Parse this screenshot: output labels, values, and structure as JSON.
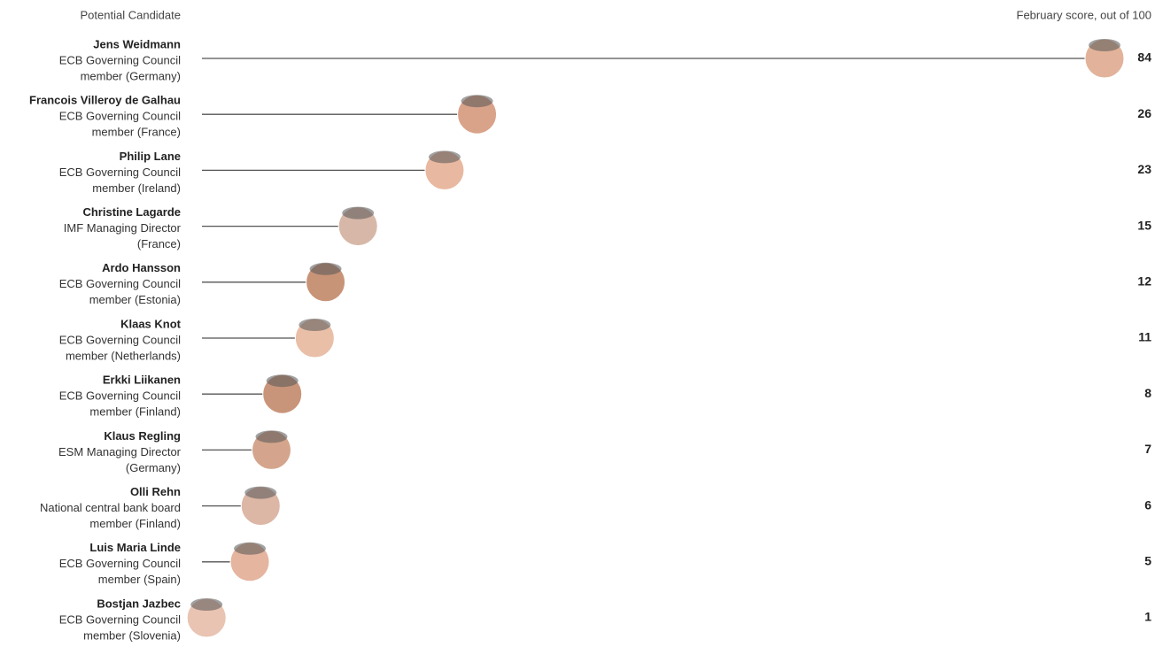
{
  "chart_data": {
    "type": "lollipop",
    "category_header": "Potential Candidate",
    "value_header": "February score, out of 100",
    "categories": [
      "Jens Weidmann",
      "Francois Villeroy de Galhau",
      "Philip Lane",
      "Christine Lagarde",
      "Ardo Hansson",
      "Klaas Knot",
      "Erkki Liikanen",
      "Klaus Regling",
      "Olli Rehn",
      "Luis Maria Linde",
      "Bostjan Jazbec"
    ],
    "roles": [
      [
        "ECB Governing Council",
        "member (Germany)"
      ],
      [
        "ECB Governing Council",
        "member (France)"
      ],
      [
        "ECB Governing Council",
        "member (Ireland)"
      ],
      [
        "IMF Managing Director",
        "(France)"
      ],
      [
        "ECB Governing Council",
        "member (Estonia)"
      ],
      [
        "ECB Governing Council",
        "member (Netherlands)"
      ],
      [
        "ECB Governing Council",
        "member (Finland)"
      ],
      [
        "ESM Managing Director",
        "(Germany)"
      ],
      [
        "National central bank board",
        "member (Finland)"
      ],
      [
        "ECB Governing Council",
        "member (Spain)"
      ],
      [
        "ECB Governing Council",
        "member (Slovenia)"
      ]
    ],
    "values": [
      84,
      26,
      23,
      15,
      12,
      11,
      8,
      7,
      6,
      5,
      1
    ],
    "color": "#555555"
  }
}
